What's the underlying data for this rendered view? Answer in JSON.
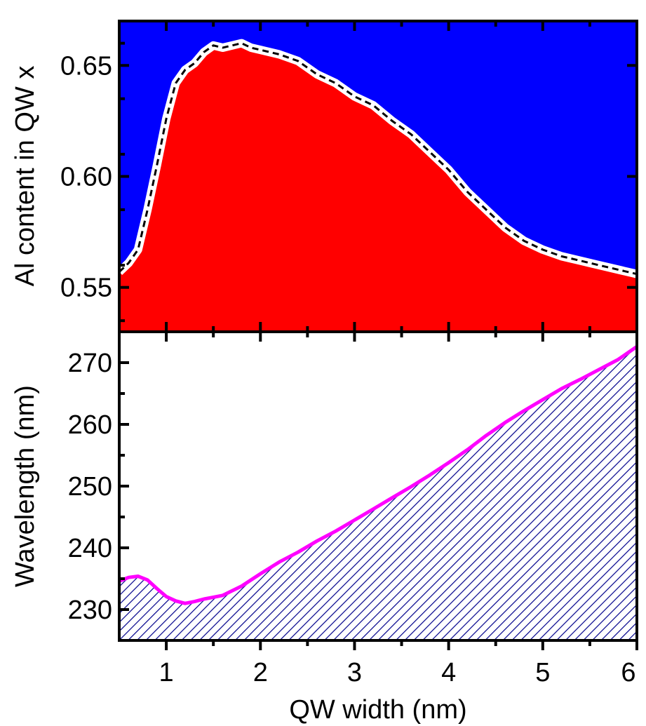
{
  "colors": {
    "background": "#ffffff",
    "axis": "#000000",
    "top_above_fill": "#0000ff",
    "top_below_fill": "#ff0000",
    "boundary_line": "#000000",
    "boundary_halo": "#ffffff",
    "hatch": "#00008b",
    "wavelength_line": "#ff00ff"
  },
  "chart_data": [
    {
      "type": "area",
      "panel": "top",
      "xlabel": "",
      "ylabel": "Al content in QW x",
      "xlim": [
        0.5,
        6.0
      ],
      "ylim": [
        0.53,
        0.67
      ],
      "xticks": [
        1,
        2,
        3,
        4,
        5,
        6
      ],
      "yticks": [
        0.55,
        0.6,
        0.65
      ],
      "ytick_labels": [
        "0.55",
        "0.60",
        "0.65"
      ],
      "fill_above": "blue",
      "fill_below": "red",
      "boundary_style": "dashed black on white",
      "x": [
        0.5,
        0.6,
        0.7,
        0.8,
        0.9,
        1.0,
        1.1,
        1.2,
        1.3,
        1.4,
        1.5,
        1.6,
        1.7,
        1.8,
        1.9,
        2.0,
        2.2,
        2.4,
        2.6,
        2.8,
        3.0,
        3.2,
        3.4,
        3.6,
        3.8,
        4.0,
        4.2,
        4.4,
        4.6,
        4.8,
        5.0,
        5.2,
        5.4,
        5.6,
        5.8,
        6.0
      ],
      "y": [
        0.557,
        0.561,
        0.567,
        0.585,
        0.605,
        0.626,
        0.642,
        0.648,
        0.651,
        0.656,
        0.659,
        0.658,
        0.659,
        0.66,
        0.658,
        0.657,
        0.655,
        0.652,
        0.646,
        0.642,
        0.636,
        0.632,
        0.625,
        0.619,
        0.611,
        0.603,
        0.593,
        0.585,
        0.577,
        0.571,
        0.567,
        0.564,
        0.562,
        0.56,
        0.558,
        0.556
      ]
    },
    {
      "type": "line",
      "panel": "bottom",
      "xlabel": "QW width (nm)",
      "ylabel": "Wavelength (nm)",
      "xlim": [
        0.5,
        6.0
      ],
      "ylim": [
        225,
        275
      ],
      "xticks": [
        1,
        2,
        3,
        4,
        5,
        6
      ],
      "xtick_labels": [
        "1",
        "2",
        "3",
        "4",
        "5",
        "6"
      ],
      "yticks": [
        230,
        240,
        250,
        260,
        270
      ],
      "ytick_labels": [
        "230",
        "240",
        "250",
        "260",
        "270"
      ],
      "area_below": "hatched",
      "x": [
        0.5,
        0.6,
        0.7,
        0.8,
        0.9,
        1.0,
        1.1,
        1.2,
        1.3,
        1.4,
        1.5,
        1.6,
        1.8,
        2.0,
        2.2,
        2.4,
        2.6,
        2.8,
        3.0,
        3.2,
        3.4,
        3.6,
        3.8,
        4.0,
        4.2,
        4.4,
        4.6,
        4.8,
        5.0,
        5.2,
        5.4,
        5.6,
        5.8,
        6.0
      ],
      "y": [
        234.6,
        235.2,
        235.4,
        234.8,
        233.4,
        232.1,
        231.4,
        231.0,
        231.3,
        231.7,
        232.0,
        232.3,
        233.8,
        235.8,
        237.7,
        239.3,
        241.1,
        242.7,
        244.5,
        246.3,
        248.1,
        249.9,
        251.8,
        253.8,
        255.9,
        258.2,
        260.3,
        262.2,
        264.0,
        265.8,
        267.3,
        268.9,
        270.5,
        272.6
      ]
    }
  ]
}
